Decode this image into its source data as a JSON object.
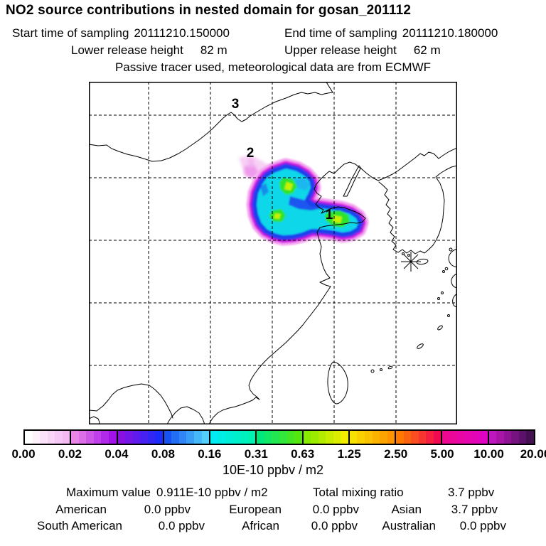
{
  "header": {
    "title": "NO2 source contributions in nested domain for gosan_201112",
    "sampling": {
      "start_label": "Start time of sampling",
      "start_value": "20111210.150000",
      "end_label": "End time of sampling",
      "end_value": "20111210.180000"
    },
    "release": {
      "lower_label": "Lower release height",
      "lower_value": "82 m",
      "upper_label": "Upper release height",
      "upper_value": "62 m"
    },
    "tracer_note": "Passive tracer used, meteorological data are from ECMWF"
  },
  "map": {
    "region_labels": [
      {
        "text": "3"
      },
      {
        "text": "2"
      },
      {
        "text": "1"
      }
    ],
    "station": {
      "name": "gosan",
      "marker": "asterisk-star"
    }
  },
  "colorbar": {
    "unit_label": "10E-10 ppbv / m2",
    "tick_labels": [
      "0.00",
      "0.02",
      "0.04",
      "0.08",
      "0.16",
      "0.31",
      "0.63",
      "1.25",
      "2.50",
      "5.00",
      "10.00",
      "20.00"
    ],
    "blocks": [
      {
        "from": "#ffffff",
        "to": "#f3b9f1"
      },
      {
        "from": "#ea85e7",
        "to": "#a312e9"
      },
      {
        "from": "#8a10e2",
        "to": "#1c2cfa"
      },
      {
        "from": "#1753f2",
        "to": "#52d0fb"
      },
      {
        "from": "#00ecf2",
        "to": "#00f2b2"
      },
      {
        "from": "#00e87c",
        "to": "#55e60e"
      },
      {
        "from": "#87eb00",
        "to": "#f2ee00"
      },
      {
        "from": "#f7e100",
        "to": "#ff9300"
      },
      {
        "from": "#ff7900",
        "to": "#f20a50"
      },
      {
        "from": "#ee0890",
        "to": "#df04c2"
      },
      {
        "from": "#bf17bf",
        "to": "#451053"
      }
    ]
  },
  "stats": {
    "max_label": "Maximum value",
    "max_value": "0.911E-10 ppbv / m2",
    "total_label": "Total mixing ratio",
    "total_value": "3.7 ppbv",
    "regions": [
      {
        "name": "American",
        "value": "0.0 ppbv"
      },
      {
        "name": "European",
        "value": "0.0 ppbv"
      },
      {
        "name": "Asian",
        "value": "3.7 ppbv"
      },
      {
        "name": "South American",
        "value": "0.0 ppbv"
      },
      {
        "name": "African",
        "value": "0.0 ppbv"
      },
      {
        "name": "Australian",
        "value": "0.0 ppbv"
      }
    ]
  },
  "plume_colors": {
    "wisp_light": "#f7d0f5",
    "wisp_mid": "#ef9aec",
    "halo_pink": "#f4a6f1",
    "magenta": "#dd2fe1",
    "purple": "#7d12e7",
    "blue": "#1e41ee",
    "cyan": "#10d7e8",
    "green": "#2fe32a",
    "core_yellow": "#c8ef00"
  },
  "chart_data": {
    "type": "heatmap",
    "title": "NO2 source contributions in nested domain for gosan_201112",
    "subtitle": "Passive tracer used, meteorological data are from ECMWF",
    "sampling_start": "20111210.150000",
    "sampling_end": "20111210.180000",
    "lower_release_height_m": 82,
    "upper_release_height_m": 62,
    "scale_boundaries": [
      0.0,
      0.02,
      0.04,
      0.08,
      0.16,
      0.31,
      0.63,
      1.25,
      2.5,
      5.0,
      10.0,
      20.0
    ],
    "scale_unit": "10E-10 ppbv / m2",
    "scale_type": "logarithmic-doubling",
    "maximum_value": "0.911E-10 ppbv / m2",
    "total_mixing_ratio_ppbv": 3.7,
    "contributions_ppbv": {
      "American": 0.0,
      "European": 0.0,
      "Asian": 3.7,
      "South American": 0.0,
      "African": 0.0,
      "Australian": 0.0
    },
    "numbered_source_regions_on_map": [
      "1",
      "2",
      "3"
    ],
    "receptor_station": "gosan (marked with asterisk)",
    "plume_location": "Plume over eastern China / Shandong peninsula, peak values 0.63-1.25 (yellow-green cores), faint wisp extending northwest",
    "legend_position": "bottom"
  }
}
